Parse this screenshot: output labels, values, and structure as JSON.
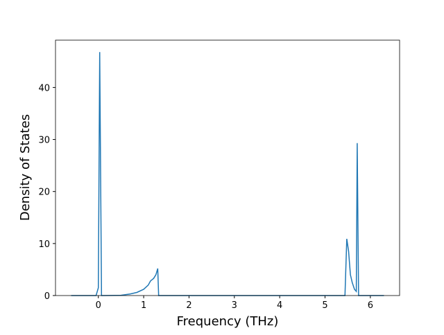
{
  "chart_data": {
    "type": "line",
    "x_label": "Frequency (THz)",
    "y_label": "Density of States",
    "series": [
      {
        "color": "#1f77b4",
        "x": [
          -0.6,
          -0.05,
          0.0,
          0.03,
          0.07,
          0.1,
          0.5,
          0.7,
          0.85,
          1.0,
          1.1,
          1.15,
          1.22,
          1.27,
          1.31,
          1.33,
          1.4,
          5.4,
          5.44,
          5.48,
          5.52,
          5.56,
          5.6,
          5.65,
          5.69,
          5.71,
          5.74,
          6.3
        ],
        "values": [
          0,
          0,
          1.5,
          46.8,
          0,
          0,
          0.05,
          0.3,
          0.6,
          1.2,
          2.0,
          2.8,
          3.3,
          4.0,
          5.2,
          0,
          0,
          0,
          0,
          10.9,
          8.5,
          4.0,
          2.5,
          1.2,
          0.8,
          29.3,
          0,
          0
        ]
      }
    ],
    "xlim": [
      -0.945,
      6.645
    ],
    "xticks": [
      0,
      1,
      2,
      3,
      4,
      5,
      6
    ],
    "ylim": [
      0,
      49.1
    ],
    "yticks": [
      0,
      10,
      20,
      30,
      40
    ]
  }
}
